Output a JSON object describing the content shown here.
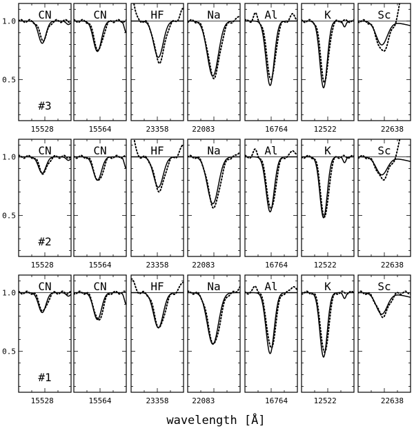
{
  "figure": {
    "xlabel": "wavelength [Å]",
    "yticks": [
      "1.0",
      "0.5"
    ]
  },
  "chart_data": {
    "type": "line",
    "description_note": "",
    "ylim": [
      0.15,
      1.15
    ],
    "yticks": [
      1.0,
      0.5
    ],
    "xlabel": "wavelength [Å]",
    "line_styles": {
      "model": "solid",
      "observed": "dotted"
    },
    "columns": [
      {
        "label": "CN",
        "xtick": "15528"
      },
      {
        "label": "CN",
        "xtick": "15564"
      },
      {
        "label": "HF",
        "xtick": "23358"
      },
      {
        "label": "Na",
        "xtick": "22083"
      },
      {
        "label": "Al",
        "xtick": "16764"
      },
      {
        "label": "K",
        "xtick": "12522"
      },
      {
        "label": "Sc",
        "xtick": "22638"
      }
    ],
    "rows": [
      {
        "tag": "#3",
        "minima": [
          {
            "line": "CN",
            "model": 0.81,
            "observed": 0.84
          },
          {
            "line": "CN",
            "model": 0.74,
            "observed": 0.75
          },
          {
            "line": "HF",
            "model": 0.69,
            "observed": 0.65
          },
          {
            "line": "Na",
            "model": 0.53,
            "observed": 0.52
          },
          {
            "line": "Al",
            "model": 0.45,
            "observed": 0.5
          },
          {
            "line": "K",
            "model": 0.43,
            "observed": 0.48
          },
          {
            "line": "Sc",
            "model": 0.8,
            "observed": 0.74
          }
        ]
      },
      {
        "tag": "#2",
        "minima": [
          {
            "line": "CN",
            "model": 0.86,
            "observed": 0.86
          },
          {
            "line": "CN",
            "model": 0.8,
            "observed": 0.79
          },
          {
            "line": "HF",
            "model": 0.74,
            "observed": 0.71
          },
          {
            "line": "Na",
            "model": 0.6,
            "observed": 0.57
          },
          {
            "line": "Al",
            "model": 0.53,
            "observed": 0.55
          },
          {
            "line": "K",
            "model": 0.48,
            "observed": 0.48
          },
          {
            "line": "Sc",
            "model": 0.85,
            "observed": 0.81
          }
        ]
      },
      {
        "tag": "#1",
        "minima": [
          {
            "line": "CN",
            "model": 0.83,
            "observed": 0.84
          },
          {
            "line": "CN",
            "model": 0.77,
            "observed": 0.76
          },
          {
            "line": "HF",
            "model": 0.7,
            "observed": 0.7
          },
          {
            "line": "Na",
            "model": 0.56,
            "observed": 0.56
          },
          {
            "line": "Al",
            "model": 0.48,
            "observed": 0.52
          },
          {
            "line": "K",
            "model": 0.45,
            "observed": 0.48
          },
          {
            "line": "Sc",
            "model": 0.82,
            "observed": 0.8
          }
        ]
      }
    ]
  }
}
